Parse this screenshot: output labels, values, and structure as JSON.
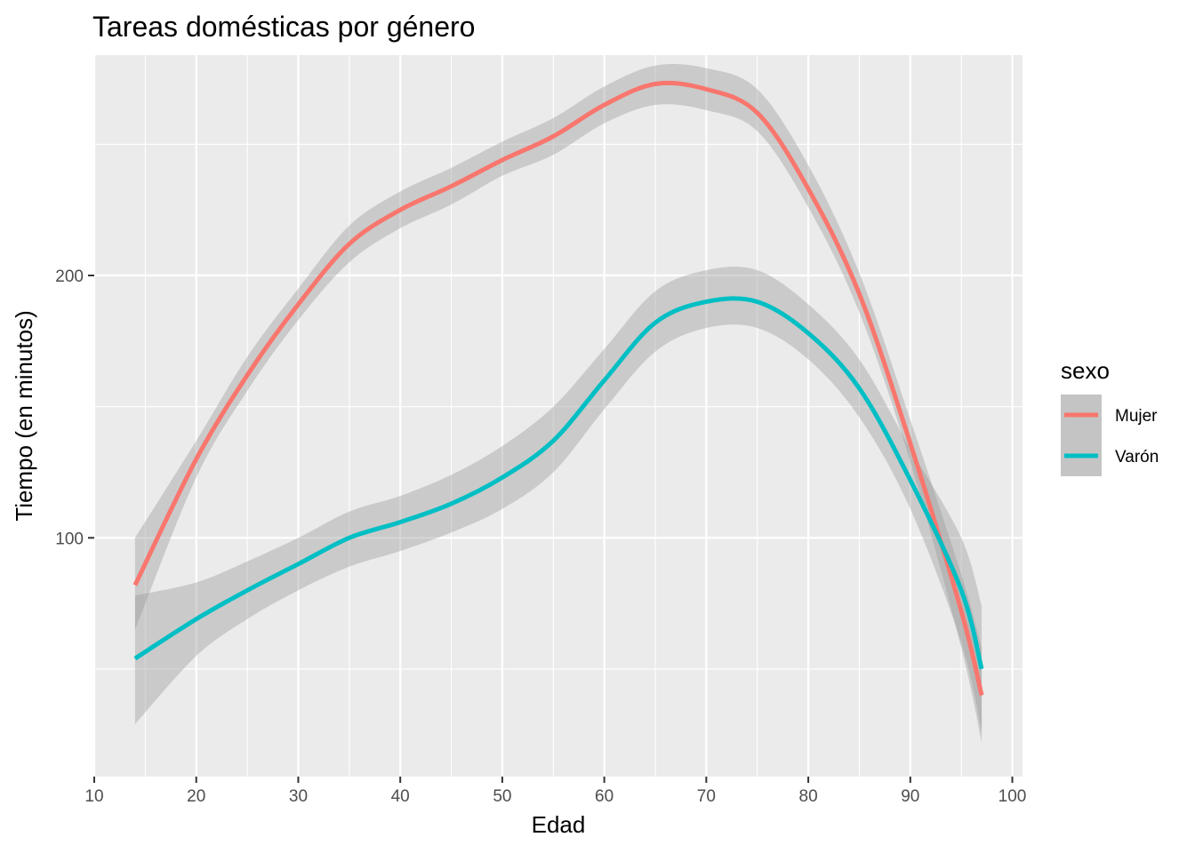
{
  "chart_data": {
    "type": "line",
    "title": "Tareas domésticas por género",
    "xlabel": "Edad",
    "ylabel": "Tiempo (en minutos)",
    "xlim": [
      10,
      101
    ],
    "ylim": [
      9,
      284
    ],
    "x_ticks": [
      10,
      20,
      30,
      40,
      50,
      60,
      70,
      80,
      90,
      100
    ],
    "y_ticks": [
      100,
      200
    ],
    "grid": true,
    "legend": {
      "title": "sexo",
      "placement": "right"
    },
    "panel_color": "#ebebeb",
    "ribbon_color": "#c4c4c4",
    "x": [
      14,
      20,
      25,
      30,
      35,
      40,
      45,
      50,
      55,
      60,
      65,
      70,
      75,
      80,
      85,
      90,
      95,
      97
    ],
    "series": [
      {
        "name": "Mujer",
        "color": "#f8766d",
        "values": [
          82,
          130,
          162,
          189,
          212,
          225,
          234,
          244,
          253,
          265,
          273,
          271,
          262,
          233,
          193,
          136,
          72,
          40
        ],
        "lower": [
          65,
          123,
          156,
          183,
          205,
          218,
          227,
          238,
          246,
          258,
          265,
          263,
          255,
          226,
          186,
          129,
          58,
          22
        ],
        "upper": [
          100,
          137,
          169,
          195,
          219,
          232,
          241,
          251,
          260,
          272,
          280,
          279,
          271,
          242,
          201,
          145,
          86,
          58
        ]
      },
      {
        "name": "Varón",
        "color": "#00bfc4",
        "values": [
          54,
          69,
          80,
          90,
          100,
          106,
          113,
          123,
          137,
          160,
          182,
          190,
          190,
          178,
          157,
          122,
          80,
          50
        ],
        "lower": [
          29,
          55,
          69,
          80,
          89,
          95,
          102,
          111,
          125,
          149,
          171,
          180,
          180,
          168,
          146,
          111,
          60,
          26
        ],
        "upper": [
          78,
          83,
          91,
          100,
          110,
          116,
          124,
          135,
          150,
          172,
          194,
          202,
          202,
          189,
          168,
          134,
          100,
          74
        ]
      }
    ]
  }
}
